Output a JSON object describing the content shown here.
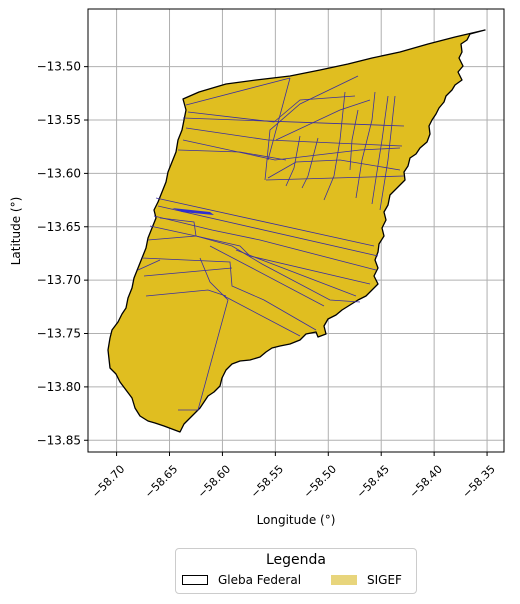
{
  "map": {
    "ylabel": "Latitude (°)",
    "xlabel": "Longitude (°)",
    "grid": true,
    "x_ticks": [
      -58.7,
      -58.65,
      -58.6,
      -58.55,
      -58.5,
      -58.45,
      -58.4,
      -58.35
    ],
    "x_tick_labels": [
      "−58.70",
      "−58.65",
      "−58.60",
      "−58.55",
      "−58.50",
      "−58.45",
      "−58.40",
      "−58.35"
    ],
    "y_ticks": [
      -13.5,
      -13.55,
      -13.6,
      -13.65,
      -13.7,
      -13.75,
      -13.8,
      -13.85
    ],
    "y_tick_labels": [
      "−13.50",
      "−13.55",
      "−13.60",
      "−13.65",
      "−13.70",
      "−13.75",
      "−13.80",
      "−13.85"
    ],
    "xlim": [
      -58.727,
      -58.334
    ],
    "ylim": [
      -13.861,
      -13.446
    ],
    "colors": {
      "gleba_fill": "#e0be20",
      "gleba_outline": "#000000",
      "parcel_lines": "#3a2fa0",
      "grid": "#b0b0b0"
    }
  },
  "legend": {
    "title": "Legenda",
    "items": [
      {
        "label": "Gleba Federal",
        "swatch": "outline-box"
      },
      {
        "label": "SIGEF",
        "swatch": "filled",
        "color": "#e8d57c"
      }
    ]
  }
}
